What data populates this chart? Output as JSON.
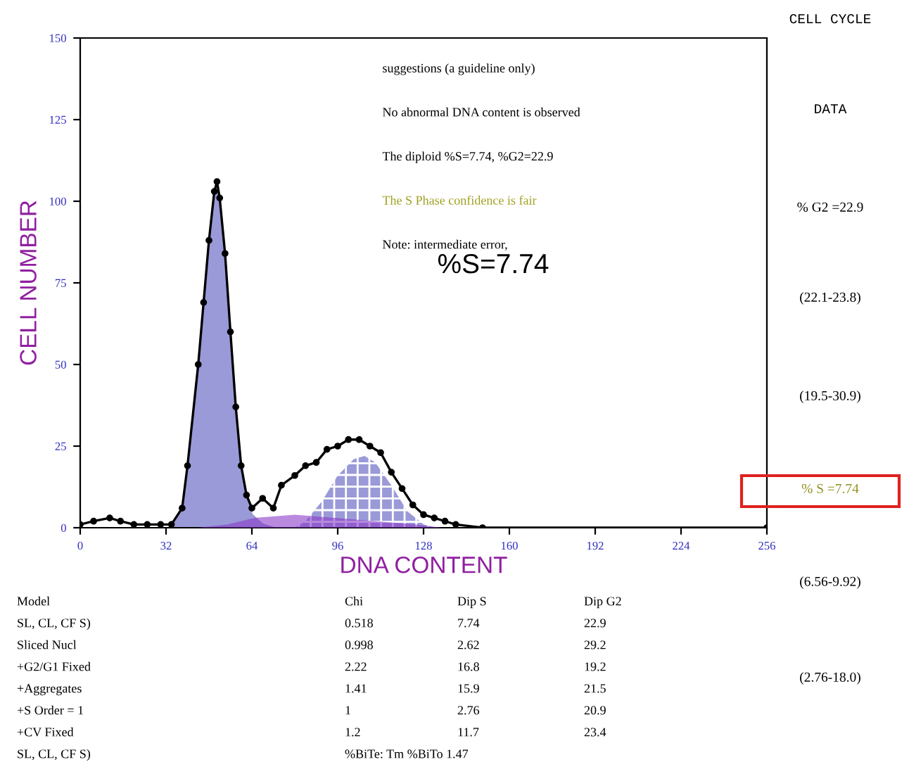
{
  "chart_data": {
    "type": "area",
    "xlabel": "DNA CONTENT",
    "ylabel": "CELL NUMBER",
    "xlim": [
      0,
      256
    ],
    "xticks": [
      0,
      32,
      64,
      96,
      128,
      160,
      192,
      224,
      256
    ],
    "ylim": [
      0,
      150
    ],
    "yticks": [
      0,
      25,
      50,
      75,
      100,
      125,
      150
    ],
    "grid": false,
    "series": [
      {
        "color": "#9a9ad8",
        "x": [
          34,
          38,
          40,
          44,
          46,
          48,
          50,
          51,
          52,
          54,
          56,
          58,
          60,
          62,
          64,
          68,
          72
        ],
        "values": [
          0,
          5,
          18,
          49,
          68,
          87,
          102,
          105,
          100,
          83,
          59,
          36,
          18,
          9,
          4,
          1,
          0
        ]
      },
      {
        "color": "#8a3cc8",
        "x": [
          44,
          55,
          65,
          80,
          95,
          110,
          125,
          135
        ],
        "values": [
          0,
          1,
          3,
          4,
          3,
          2,
          1,
          0
        ]
      },
      {
        "color": "#9a9ad8",
        "x": [
          80,
          84,
          90,
          96,
          102,
          106,
          110,
          116,
          122,
          128,
          132
        ],
        "values": [
          0,
          2,
          8,
          16,
          21,
          22,
          20,
          13,
          5,
          1,
          0
        ]
      },
      {
        "type": "line",
        "color": "#000000",
        "marker": "circle",
        "x": [
          0,
          5,
          11,
          15,
          20,
          25,
          30,
          34,
          38,
          40,
          44,
          46,
          48,
          50,
          51,
          52,
          54,
          56,
          58,
          60,
          62,
          64,
          68,
          72,
          75,
          80,
          84,
          88,
          92,
          96,
          100,
          104,
          108,
          112,
          116,
          120,
          124,
          128,
          132,
          136,
          140,
          150,
          256
        ],
        "values": [
          1,
          2,
          3,
          2,
          1,
          1,
          1,
          1,
          6,
          19,
          50,
          69,
          88,
          103,
          106,
          101,
          84,
          60,
          37,
          19,
          10,
          6,
          9,
          6,
          13,
          16,
          19,
          20,
          24,
          25,
          27,
          27,
          25,
          23,
          17,
          12,
          7,
          4,
          3,
          2,
          1,
          0,
          0
        ]
      }
    ],
    "annotations": [
      "suggestions (a guideline only)",
      "No abnormal DNA content is observed",
      "The diploid %S=7.74, %G2=22.9",
      "The S Phase confidence is fair",
      "Note: intermediate error,",
      "%S=7.74",
      "CELL CYCLE",
      "DATA",
      "% G2 =22.9",
      "(22.1-23.8)",
      "(19.5-30.9)",
      "% S =7.74",
      "(6.56-9.92)",
      "(2.76-18.0)",
      "Model",
      "Chi",
      "Dip S",
      "Dip G2",
      "SL, CL, CF S)",
      "0.518",
      "7.74",
      "22.9",
      "Sliced Nucl",
      "0.998",
      "2.62",
      "29.2",
      "+G2/G1 Fixed",
      "2.22",
      "16.8",
      "19.2",
      "+Aggregates",
      "1.41",
      "15.9",
      "21.5",
      "+S Order = 1",
      "1",
      "2.76",
      "20.9",
      "+CV Fixed",
      "1.2",
      "11.7",
      "23.4",
      "SL, CL, CF S)",
      "%BiTe: Tm %BiTo 1.47"
    ]
  }
}
